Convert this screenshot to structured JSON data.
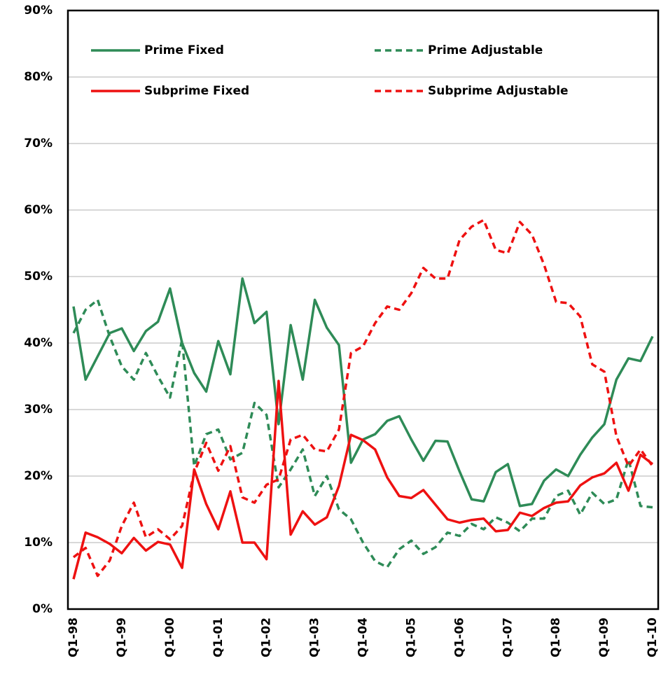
{
  "chart_data": {
    "type": "line",
    "categories": [
      "Q1-98",
      null,
      null,
      null,
      "Q1-99",
      null,
      null,
      null,
      "Q1-00",
      null,
      null,
      null,
      "Q1-01",
      null,
      null,
      null,
      "Q1-02",
      null,
      null,
      null,
      "Q1-03",
      null,
      null,
      null,
      "Q1-04",
      null,
      null,
      null,
      "Q1-05",
      null,
      null,
      null,
      "Q1-06",
      null,
      null,
      null,
      "Q1-07",
      null,
      null,
      null,
      "Q1-08",
      null,
      null,
      null,
      "Q1-09",
      null,
      null,
      null,
      "Q1-10"
    ],
    "series": [
      {
        "name": "Prime Fixed",
        "color": "#2e8b57",
        "dash": false,
        "values": [
          45.5,
          34.5,
          38,
          41.5,
          42.2,
          38.8,
          41.8,
          43.2,
          48.2,
          40,
          35.5,
          32.7,
          40.3,
          35.3,
          49.7,
          43,
          44.7,
          27.8,
          42.7,
          34.5,
          46.5,
          42.3,
          39.7,
          22,
          25.5,
          26.3,
          28.3,
          29,
          25.5,
          22.3,
          25.3,
          25.2,
          20.7,
          16.5,
          16.2,
          20.6,
          21.8,
          15.5,
          15.8,
          19.3,
          21,
          20,
          23.2,
          25.8,
          27.8,
          34.5,
          37.7,
          37.3,
          41
        ]
      },
      {
        "name": "Prime Adjustable",
        "color": "#2e8b57",
        "dash": true,
        "values": [
          41.5,
          45,
          46.5,
          41,
          36.5,
          34.5,
          38.5,
          35,
          31.8,
          40.5,
          21.5,
          26.3,
          27,
          22.5,
          23.5,
          31,
          29.2,
          18.3,
          21,
          24,
          17,
          20,
          15,
          13.5,
          10,
          7.2,
          6.3,
          9,
          10.3,
          8.3,
          9.3,
          11.5,
          11,
          12.8,
          12,
          13.8,
          13,
          11.7,
          13.6,
          13.6,
          17,
          17.8,
          14.2,
          17.5,
          15.8,
          16.5,
          22.5,
          15.5,
          15.3
        ]
      },
      {
        "name": "Subprime Fixed",
        "color": "#ee1111",
        "dash": false,
        "values": [
          4.5,
          11.5,
          10.8,
          9.8,
          8.4,
          10.7,
          8.8,
          10.1,
          9.7,
          6.2,
          21,
          15.8,
          12,
          17.7,
          10,
          10,
          7.5,
          34.3,
          11.2,
          14.7,
          12.7,
          13.8,
          18.5,
          26.2,
          25.4,
          24,
          19.8,
          17,
          16.7,
          17.9,
          15.7,
          13.5,
          13,
          13.4,
          13.6,
          11.7,
          11.9,
          14.5,
          14,
          15.2,
          16,
          16.2,
          18.6,
          19.8,
          20.4,
          22,
          17.8,
          23.2,
          21.8
        ]
      },
      {
        "name": "Subprime Adjustable",
        "color": "#ee1111",
        "dash": true,
        "values": [
          7.8,
          9.2,
          5,
          7.3,
          12.5,
          16,
          10.8,
          12,
          10.5,
          12.5,
          20.5,
          25,
          20.8,
          24.5,
          16.8,
          16,
          18.7,
          19.5,
          25.5,
          26.2,
          24,
          23.7,
          27,
          38.5,
          39.5,
          43,
          45.5,
          45,
          47.5,
          51.3,
          49.7,
          49.7,
          55.5,
          57.5,
          58.5,
          54,
          53.5,
          58.2,
          56.3,
          51.8,
          46.2,
          46,
          44,
          36.8,
          35.7,
          26,
          21.5,
          24,
          21.5
        ]
      }
    ],
    "ylim": [
      0,
      90
    ],
    "yticks": [
      {
        "value": 0,
        "label": "0%"
      },
      {
        "value": 10,
        "label": "10%"
      },
      {
        "value": 20,
        "label": "20%"
      },
      {
        "value": 30,
        "label": "30%"
      },
      {
        "value": 40,
        "label": "40%"
      },
      {
        "value": 50,
        "label": "50%"
      },
      {
        "value": 60,
        "label": "60%"
      },
      {
        "value": 70,
        "label": "70%"
      },
      {
        "value": 80,
        "label": "80%"
      },
      {
        "value": 90,
        "label": "90%"
      }
    ],
    "grid": true,
    "legend": "top"
  }
}
